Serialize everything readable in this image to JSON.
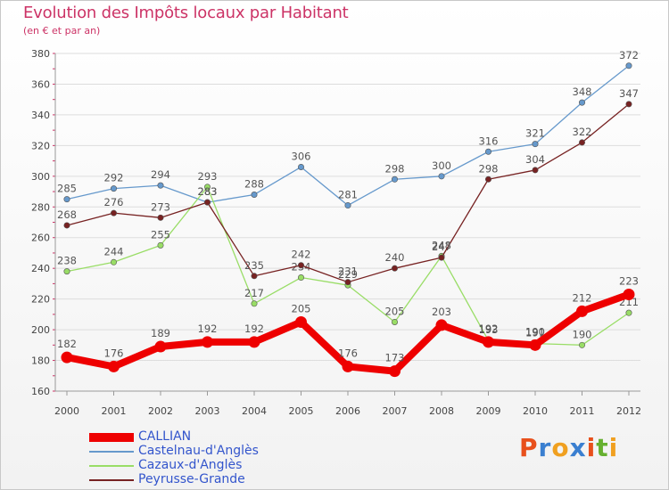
{
  "header": {
    "title": "Evolution des Impôts locaux par Habitant",
    "subtitle": "(en € et par an)"
  },
  "logo": {
    "text": "Proxiti",
    "letters": [
      "P",
      "r",
      "o",
      "x",
      "i",
      "t",
      "i"
    ],
    "colors": [
      "#e8501c",
      "#3a7fd0",
      "#f0a020",
      "#3a7fd0",
      "#e8501c",
      "#66b030",
      "#f0a020"
    ]
  },
  "chart_data": {
    "type": "line",
    "title": "Evolution des Impôts locaux par Habitant",
    "subtitle": "(en € et par an)",
    "xlabel": "",
    "ylabel": "",
    "x": [
      "2000",
      "2001",
      "2002",
      "2003",
      "2004",
      "2005",
      "2006",
      "2007",
      "2008",
      "2009",
      "2010",
      "2011",
      "2012"
    ],
    "ylim": [
      160,
      380
    ],
    "yticks": [
      160,
      180,
      200,
      220,
      240,
      260,
      280,
      300,
      320,
      340,
      360,
      380
    ],
    "grid": "horizontal",
    "legend_position": "bottom-left",
    "series": [
      {
        "name": "CALLIAN",
        "color": "#ee0000",
        "emphasis": true,
        "values": [
          182,
          176,
          189,
          192,
          192,
          205,
          176,
          173,
          203,
          192,
          190,
          212,
          223
        ]
      },
      {
        "name": "Castelnau-d'Anglès",
        "color": "#6699cc",
        "emphasis": false,
        "values": [
          285,
          292,
          294,
          283,
          288,
          306,
          281,
          298,
          300,
          316,
          321,
          348,
          372
        ]
      },
      {
        "name": "Cazaux-d'Anglès",
        "color": "#99dd66",
        "emphasis": false,
        "values": [
          238,
          244,
          255,
          293,
          217,
          234,
          229,
          205,
          248,
          193,
          191,
          190,
          211
        ]
      },
      {
        "name": "Peyrusse-Grande",
        "color": "#772222",
        "emphasis": false,
        "values": [
          268,
          276,
          273,
          283,
          235,
          242,
          231,
          240,
          247,
          298,
          304,
          322,
          347
        ]
      }
    ]
  }
}
